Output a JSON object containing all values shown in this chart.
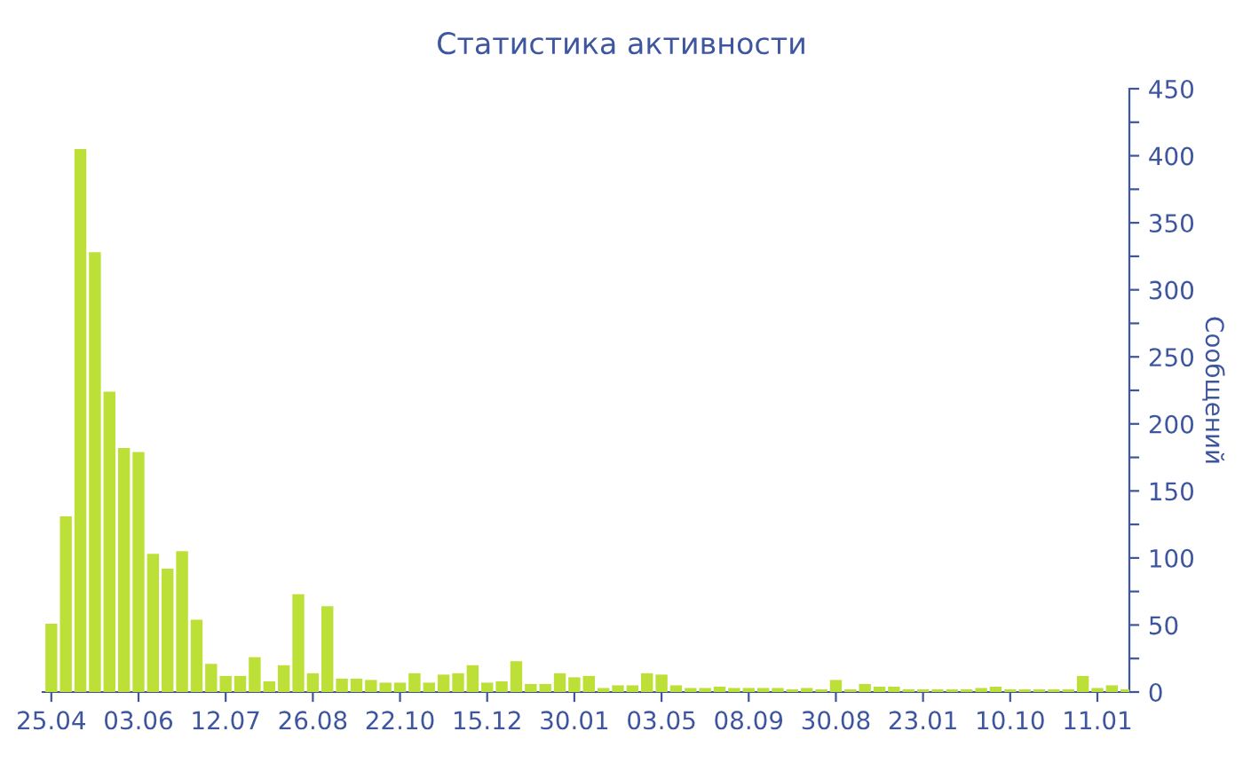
{
  "chart_data": {
    "type": "bar",
    "title": "Статистика активности",
    "ylabel": "Сообщений",
    "categories": [
      "25.04",
      null,
      null,
      null,
      null,
      null,
      "03.06",
      null,
      null,
      null,
      null,
      null,
      "12.07",
      null,
      null,
      null,
      null,
      null,
      "26.08",
      null,
      null,
      null,
      null,
      null,
      "22.10",
      null,
      null,
      null,
      null,
      null,
      "15.12",
      null,
      null,
      null,
      null,
      null,
      "30.01",
      null,
      null,
      null,
      null,
      null,
      "03.05",
      null,
      null,
      null,
      null,
      null,
      "08.09",
      null,
      null,
      null,
      null,
      null,
      "30.08",
      null,
      null,
      null,
      null,
      null,
      "23.01",
      null,
      null,
      null,
      null,
      null,
      "10.10",
      null,
      null,
      null,
      null,
      null,
      "11.01",
      null,
      null
    ],
    "values": [
      51,
      131,
      405,
      328,
      224,
      182,
      179,
      103,
      92,
      105,
      54,
      21,
      12,
      12,
      26,
      8,
      20,
      73,
      14,
      64,
      10,
      10,
      9,
      7,
      7,
      14,
      7,
      13,
      14,
      20,
      7,
      8,
      23,
      6,
      6,
      14,
      11,
      12,
      3,
      5,
      5,
      14,
      13,
      5,
      3,
      3,
      4,
      3,
      3,
      3,
      3,
      2,
      3,
      2,
      9,
      2,
      6,
      4,
      4,
      2,
      2,
      2,
      2,
      2,
      3,
      4,
      2,
      2,
      2,
      2,
      2,
      12,
      3,
      5,
      2
    ],
    "color": "#bde038",
    "ylim": [
      0,
      450
    ],
    "yticks": [
      0,
      {
        "value": 25,
        "label": null
      },
      50,
      {
        "value": 75,
        "label": null
      },
      100,
      {
        "value": 125,
        "label": null
      },
      150,
      {
        "value": 175,
        "label": null
      },
      200,
      {
        "value": 225,
        "label": null
      },
      250,
      {
        "value": 275,
        "label": null
      },
      300,
      {
        "value": 325,
        "label": null
      },
      350,
      {
        "value": 375,
        "label": null
      },
      400,
      {
        "value": 425,
        "label": null
      },
      450
    ]
  }
}
